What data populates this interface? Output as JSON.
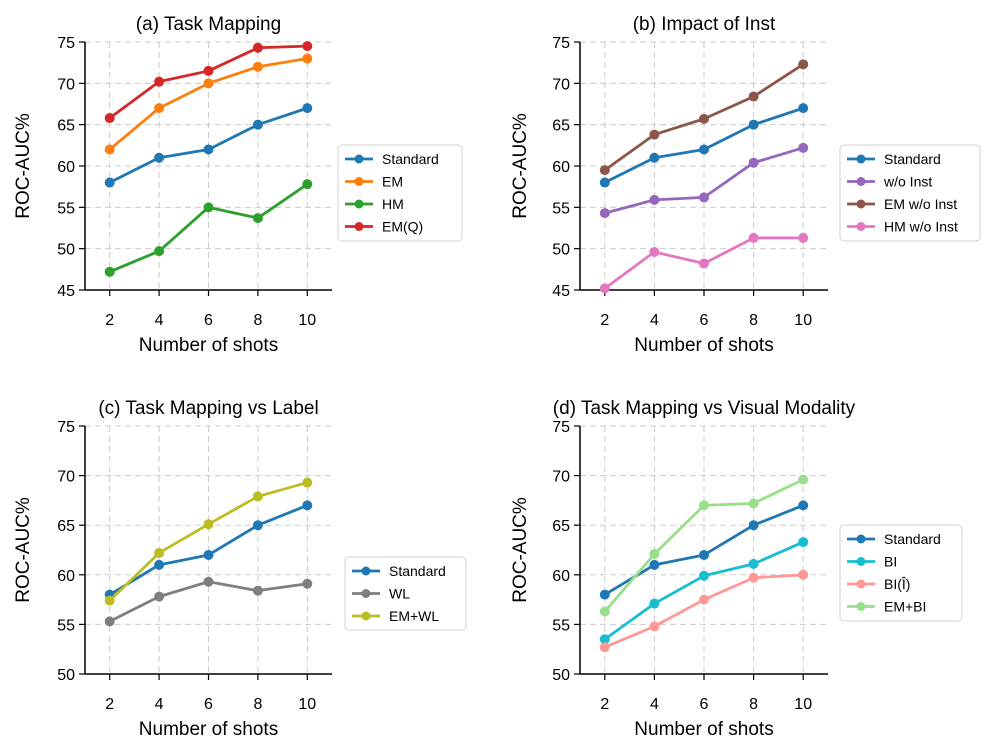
{
  "chart_data": [
    {
      "type": "line",
      "title": "(a) Task Mapping",
      "xlabel": "Number of shots",
      "ylabel": "ROC-AUC%",
      "x": [
        2,
        4,
        6,
        8,
        10
      ],
      "xticks": [
        "2",
        "4",
        "6",
        "8",
        "10"
      ],
      "ylim": [
        45,
        75
      ],
      "yticks": [
        45,
        50,
        55,
        60,
        65,
        70,
        75
      ],
      "grid": true,
      "legend_position": "outside-right",
      "series": [
        {
          "name": "Standard",
          "color": "#1f77b4",
          "values": [
            58.0,
            61.0,
            62.0,
            65.0,
            67.0
          ]
        },
        {
          "name": "EM",
          "color": "#ff7f0e",
          "values": [
            62.0,
            67.0,
            70.0,
            72.0,
            73.0
          ]
        },
        {
          "name": "HM",
          "color": "#2ca02c",
          "values": [
            47.2,
            49.7,
            55.0,
            53.7,
            57.8
          ]
        },
        {
          "name": "EM(Q)",
          "color": "#d62728",
          "values": [
            65.8,
            70.2,
            71.5,
            74.3,
            74.5
          ]
        }
      ]
    },
    {
      "type": "line",
      "title": "(b) Impact of Inst",
      "xlabel": "Number of shots",
      "ylabel": "ROC-AUC%",
      "x": [
        2,
        4,
        6,
        8,
        10
      ],
      "xticks": [
        "2",
        "4",
        "6",
        "8",
        "10"
      ],
      "ylim": [
        45,
        75
      ],
      "yticks": [
        45,
        50,
        55,
        60,
        65,
        70,
        75
      ],
      "grid": true,
      "legend_position": "outside-right",
      "series": [
        {
          "name": "Standard",
          "color": "#1f77b4",
          "values": [
            58.0,
            61.0,
            62.0,
            65.0,
            67.0
          ]
        },
        {
          "name": "w/o Inst",
          "color": "#9467bd",
          "values": [
            54.3,
            55.9,
            56.2,
            60.4,
            62.2
          ]
        },
        {
          "name": "EM w/o Inst",
          "color": "#8c564b",
          "values": [
            59.5,
            63.8,
            65.7,
            68.4,
            72.3
          ]
        },
        {
          "name": "HM w/o Inst",
          "color": "#e377c2",
          "values": [
            45.2,
            49.6,
            48.2,
            51.3,
            51.3
          ]
        }
      ]
    },
    {
      "type": "line",
      "title": "(c) Task Mapping vs Label",
      "xlabel": "Number of shots",
      "ylabel": "ROC-AUC%",
      "x": [
        2,
        4,
        6,
        8,
        10
      ],
      "xticks": [
        "2",
        "4",
        "6",
        "8",
        "10"
      ],
      "ylim": [
        50,
        75
      ],
      "yticks": [
        50,
        55,
        60,
        65,
        70,
        75
      ],
      "grid": true,
      "legend_position": "outside-right",
      "series": [
        {
          "name": "Standard",
          "color": "#1f77b4",
          "values": [
            58.0,
            61.0,
            62.0,
            65.0,
            67.0
          ]
        },
        {
          "name": "WL",
          "color": "#7f7f7f",
          "values": [
            55.3,
            57.8,
            59.3,
            58.4,
            59.1
          ]
        },
        {
          "name": "EM+WL",
          "color": "#bcbd22",
          "values": [
            57.4,
            62.2,
            65.1,
            67.9,
            69.3
          ]
        }
      ]
    },
    {
      "type": "line",
      "title": "(d) Task Mapping vs Visual Modality",
      "xlabel": "Number of shots",
      "ylabel": "ROC-AUC%",
      "x": [
        2,
        4,
        6,
        8,
        10
      ],
      "xticks": [
        "2",
        "4",
        "6",
        "8",
        "10"
      ],
      "ylim": [
        50,
        75
      ],
      "yticks": [
        50,
        55,
        60,
        65,
        70,
        75
      ],
      "grid": true,
      "legend_position": "outside-right",
      "series": [
        {
          "name": "Standard",
          "color": "#1f77b4",
          "values": [
            58.0,
            61.0,
            62.0,
            65.0,
            67.0
          ]
        },
        {
          "name": "BI",
          "color": "#17becf",
          "values": [
            53.5,
            57.1,
            59.9,
            61.1,
            63.3
          ]
        },
        {
          "name": "BI(Î)",
          "color": "#ff9896",
          "values": [
            52.7,
            54.8,
            57.5,
            59.7,
            60.0
          ]
        },
        {
          "name": "EM+BI",
          "color": "#98df8a",
          "values": [
            56.3,
            62.1,
            67.0,
            67.2,
            69.6
          ]
        }
      ]
    }
  ]
}
